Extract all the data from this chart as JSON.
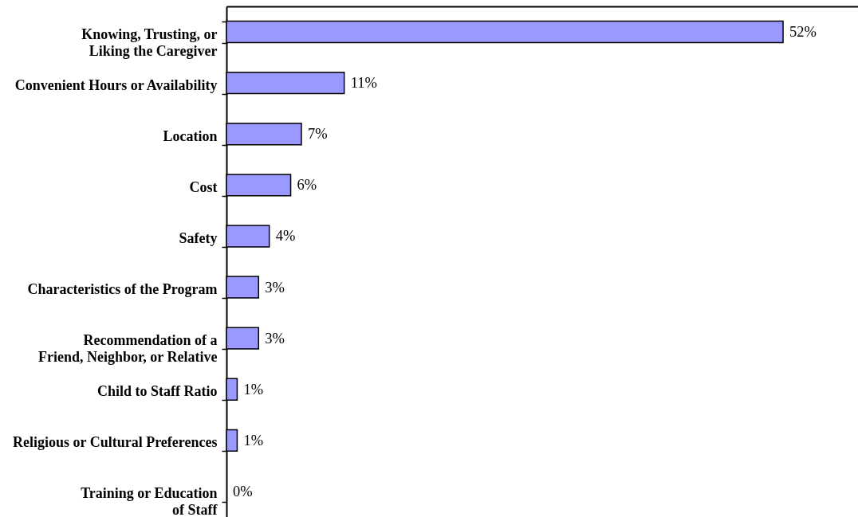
{
  "chart_data": {
    "type": "bar",
    "orientation": "horizontal",
    "categories": [
      "Knowing, Trusting, or\nLiking the Caregiver",
      "Convenient Hours or Availability",
      "Location",
      "Cost",
      "Safety",
      "Characteristics of the Program",
      "Recommendation of a\nFriend, Neighbor, or Relative",
      "Child to Staff Ratio",
      "Religious or Cultural Preferences",
      "Training or Education\nof Staff"
    ],
    "values": [
      52,
      11,
      7,
      6,
      4,
      3,
      3,
      1,
      1,
      0
    ],
    "value_labels": [
      "52%",
      "11%",
      "7%",
      "6%",
      "4%",
      "3%",
      "3%",
      "1%",
      "1%",
      "0%"
    ],
    "color": "#9999ff",
    "xlim": [
      0,
      59
    ],
    "tick_labels": "y"
  }
}
